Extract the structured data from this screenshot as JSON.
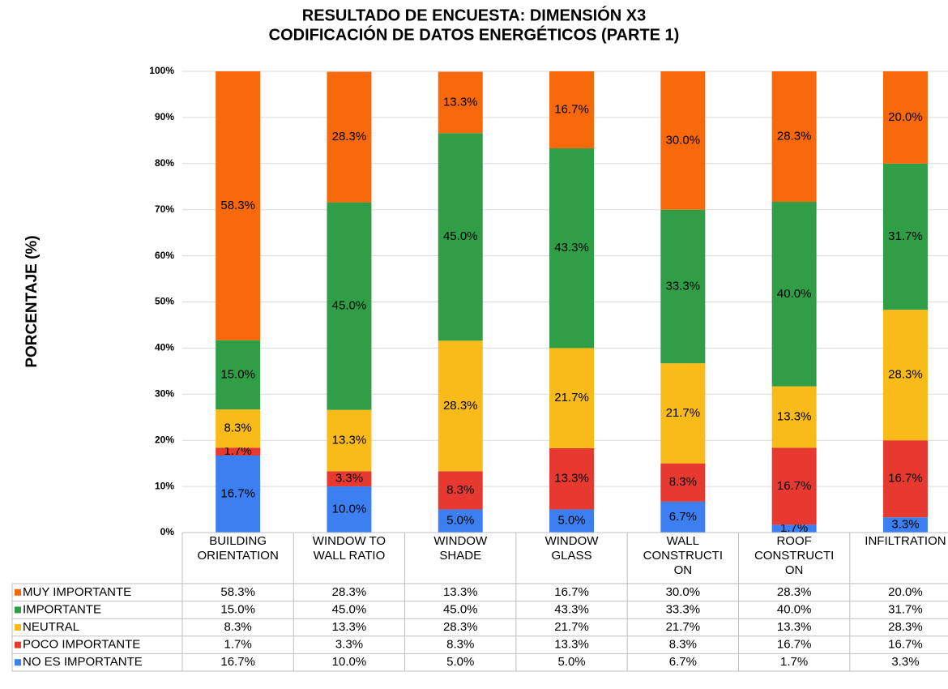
{
  "chart_data": {
    "type": "stacked_bar_100",
    "title": [
      "RESULTADO DE ENCUESTA: DIMENSIÓN X3",
      "CODIFICACIÓN DE DATOS ENERGÉTICOS (PARTE 1)"
    ],
    "y_label": "PORCENTAJE (%)",
    "categories": [
      "BUILDING ORIENTATION",
      "WINDOW TO WALL RATIO",
      "WINDOW SHADE",
      "WINDOW GLASS",
      "WALL CONSTRUCTION",
      "ROOF CONSTRUCTION",
      "INFILTRATION"
    ],
    "series": [
      {
        "name": "MUY IMPORTANTE",
        "color": "#f8690c",
        "values": [
          58.3,
          28.3,
          13.3,
          16.7,
          30.0,
          28.3,
          20.0
        ],
        "value_labels": [
          "58.3%",
          "28.3%",
          "13.3%",
          "16.7%",
          "30.0%",
          "28.3%",
          "20.0%"
        ]
      },
      {
        "name": "IMPORTANTE",
        "color": "#2f9e46",
        "values": [
          15.0,
          45.0,
          45.0,
          43.3,
          33.3,
          40.0,
          31.7
        ],
        "value_labels": [
          "15.0%",
          "45.0%",
          "45.0%",
          "43.3%",
          "33.3%",
          "40.0%",
          "31.7%"
        ]
      },
      {
        "name": "NEUTRAL",
        "color": "#f9bb1a",
        "values": [
          8.3,
          13.3,
          28.3,
          21.7,
          21.7,
          13.3,
          28.3
        ],
        "value_labels": [
          "8.3%",
          "13.3%",
          "28.3%",
          "21.7%",
          "21.7%",
          "13.3%",
          "28.3%"
        ]
      },
      {
        "name": "POCO IMPORTANTE",
        "color": "#e63a31",
        "values": [
          1.7,
          3.3,
          8.3,
          13.3,
          8.3,
          16.7,
          16.7
        ],
        "value_labels": [
          "1.7%",
          "3.3%",
          "8.3%",
          "13.3%",
          "8.3%",
          "16.7%",
          "16.7%"
        ]
      },
      {
        "name": "NO ES IMPORTANTE",
        "color": "#3b7ff0",
        "values": [
          16.7,
          10.0,
          5.0,
          5.0,
          6.7,
          1.7,
          3.3
        ],
        "value_labels": [
          "16.7%",
          "10.0%",
          "5.0%",
          "5.0%",
          "6.7%",
          "1.7%",
          "3.3%"
        ]
      }
    ],
    "ylim": [
      0,
      100
    ],
    "yticks": [
      {
        "value": 0,
        "label": "0%"
      },
      {
        "value": 10,
        "label": "10%"
      },
      {
        "value": 20,
        "label": "20%"
      },
      {
        "value": 30,
        "label": "30%"
      },
      {
        "value": 40,
        "label": "40%"
      },
      {
        "value": 50,
        "label": "50%"
      },
      {
        "value": 60,
        "label": "60%"
      },
      {
        "value": 70,
        "label": "70%"
      },
      {
        "value": 80,
        "label": "80%"
      },
      {
        "value": 90,
        "label": "90%"
      },
      {
        "value": 100,
        "label": "100%"
      }
    ],
    "grid": true
  }
}
